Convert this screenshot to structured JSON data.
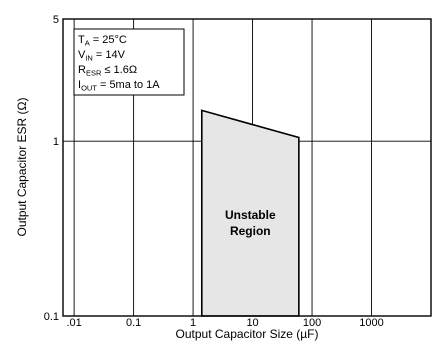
{
  "chart_data": {
    "type": "area",
    "title": "",
    "xlabel": "Output Capacitor Size (µF)",
    "ylabel": "Output Capacitor ESR (Ω)",
    "x_scale": "log",
    "y_scale": "log",
    "xlim": [
      0.0065,
      10000
    ],
    "ylim": [
      0.1,
      5
    ],
    "grid": true,
    "x_ticks": [
      {
        "value": 0.01,
        "label": ".01"
      },
      {
        "value": 0.1,
        "label": "0.1"
      },
      {
        "value": 1,
        "label": "1"
      },
      {
        "value": 10,
        "label": "10"
      },
      {
        "value": 100,
        "label": "100"
      },
      {
        "value": 1000,
        "label": "1000"
      }
    ],
    "y_ticks": [
      {
        "value": 0.1,
        "label": "0.1"
      },
      {
        "value": 1,
        "label": "1"
      },
      {
        "value": 5,
        "label": "5"
      }
    ],
    "region": {
      "label_lines": [
        "Unstable",
        "Region"
      ],
      "fill": "#e6e6e6",
      "points": [
        [
          1.4,
          0.1
        ],
        [
          1.4,
          1.5
        ],
        [
          60,
          1.05
        ],
        [
          60,
          0.1
        ]
      ]
    },
    "conditions": [
      {
        "main": "T",
        "sub": "A",
        "rest": " = 25°C"
      },
      {
        "main": "V",
        "sub": "IN",
        "rest": " = 14V"
      },
      {
        "main": "R",
        "sub": "ESR",
        "rest": " ≤ 1.6Ω"
      },
      {
        "main": "I",
        "sub": "OUT",
        "rest": " = 5ma to 1A"
      }
    ]
  }
}
